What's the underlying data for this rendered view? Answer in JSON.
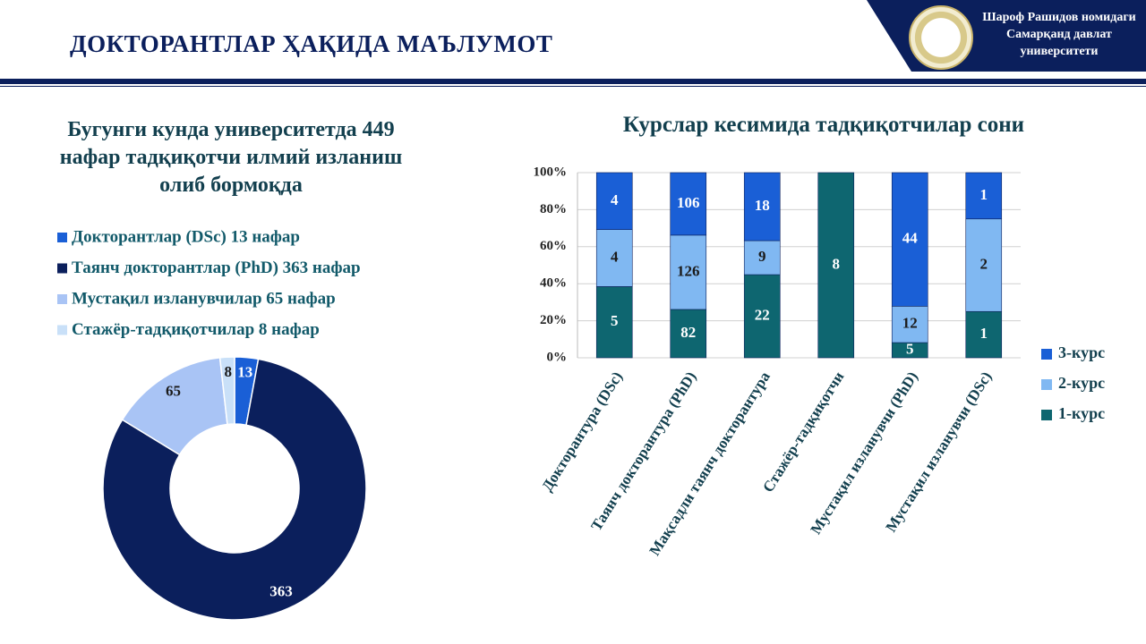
{
  "header": {
    "title": "ДОКТОРАНТЛАР ҲАҚИДА МАЪЛУМОТ",
    "university": [
      "Шароф Рашидов номидаги",
      "Самарқанд давлат",
      "университети"
    ]
  },
  "chart_data": [
    {
      "type": "donut",
      "title": "Бугунги кунда университетда 449 нафар тадқиқотчи илмий изланиш олиб бормоқда",
      "series": [
        {
          "name": "Докторантлар (DSc) 13 нафар",
          "color": "#1a5fd6",
          "value": 13
        },
        {
          "name": "Таянч докторантлар (PhD) 363 нафар",
          "color": "#0b1f5c",
          "value": 363
        },
        {
          "name": "Мустақил изланувчилар 65 нафар",
          "color": "#a9c4f5",
          "value": 65
        },
        {
          "name": "Стажёр-тадқиқотчилар 8 нафар",
          "color": "#c9e0f8",
          "value": 8
        }
      ]
    },
    {
      "type": "bar",
      "stacked": "percent",
      "title": "Курслар кесимида тадқиқотчилар сони",
      "categories": [
        "Докторантура (DSc)",
        "Таянч докторантура (PhD)",
        "Мақсадли таянч докторантура",
        "Стажёр-тадқиқотчи",
        "Мустақил изланувчи (PhD)",
        "Мустақил изланувчи (DSc)"
      ],
      "series": [
        {
          "name": "1-курс",
          "color": "#0e6670",
          "values": [
            5,
            82,
            22,
            8,
            5,
            1
          ]
        },
        {
          "name": "2-курс",
          "color": "#80b8f2",
          "values": [
            4,
            126,
            9,
            null,
            12,
            2
          ]
        },
        {
          "name": "3-курс",
          "color": "#1a5fd6",
          "values": [
            4,
            106,
            18,
            null,
            44,
            1
          ]
        }
      ],
      "ylim": [
        0,
        100
      ],
      "yticks": [
        {
          "value": 0,
          "label": "0%"
        },
        {
          "value": 20,
          "label": "20%"
        },
        {
          "value": 40,
          "label": "40%"
        },
        {
          "value": 60,
          "label": "60%"
        },
        {
          "value": 80,
          "label": "80%"
        },
        {
          "value": 100,
          "label": "100%"
        }
      ],
      "grid": true
    }
  ]
}
